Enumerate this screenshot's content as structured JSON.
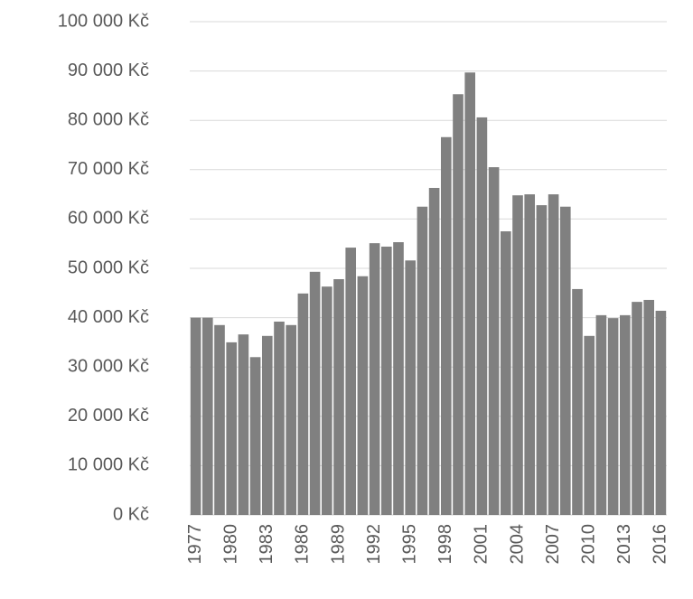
{
  "chart_data": {
    "type": "bar",
    "categories": [
      "1977",
      null,
      null,
      "1980",
      null,
      null,
      "1983",
      null,
      null,
      "1986",
      null,
      null,
      "1989",
      null,
      null,
      "1992",
      null,
      null,
      "1995",
      null,
      null,
      "1998",
      null,
      null,
      "2001",
      null,
      null,
      "2004",
      null,
      null,
      "2007",
      null,
      null,
      "2010",
      null,
      null,
      "2013",
      null,
      null,
      "2016"
    ],
    "values": [
      40000,
      40000,
      38500,
      35000,
      36600,
      32000,
      36300,
      39200,
      38500,
      44900,
      49300,
      46300,
      47800,
      54200,
      48400,
      55100,
      54400,
      55300,
      51600,
      62500,
      66300,
      76600,
      85300,
      89700,
      80600,
      70500,
      57500,
      64800,
      65000,
      62800,
      65000,
      62500,
      45800,
      36300,
      40500,
      39900,
      40500,
      43200,
      43600,
      41400
    ],
    "color": "#808080",
    "ylim": [
      0,
      100000
    ],
    "yticks": [
      {
        "value": 0,
        "label": "0 Kč"
      },
      {
        "value": 10000,
        "label": "10 000 Kč"
      },
      {
        "value": 20000,
        "label": "20 000 Kč"
      },
      {
        "value": 30000,
        "label": "30 000 Kč"
      },
      {
        "value": 40000,
        "label": "40 000 Kč"
      },
      {
        "value": 50000,
        "label": "50 000 Kč"
      },
      {
        "value": 60000,
        "label": "60 000 Kč"
      },
      {
        "value": 70000,
        "label": "70 000 Kč"
      },
      {
        "value": 80000,
        "label": "80 000 Kč"
      },
      {
        "value": 90000,
        "label": "90 000 Kč"
      },
      {
        "value": 100000,
        "label": "100 000 Kč"
      }
    ],
    "grid": true
  }
}
